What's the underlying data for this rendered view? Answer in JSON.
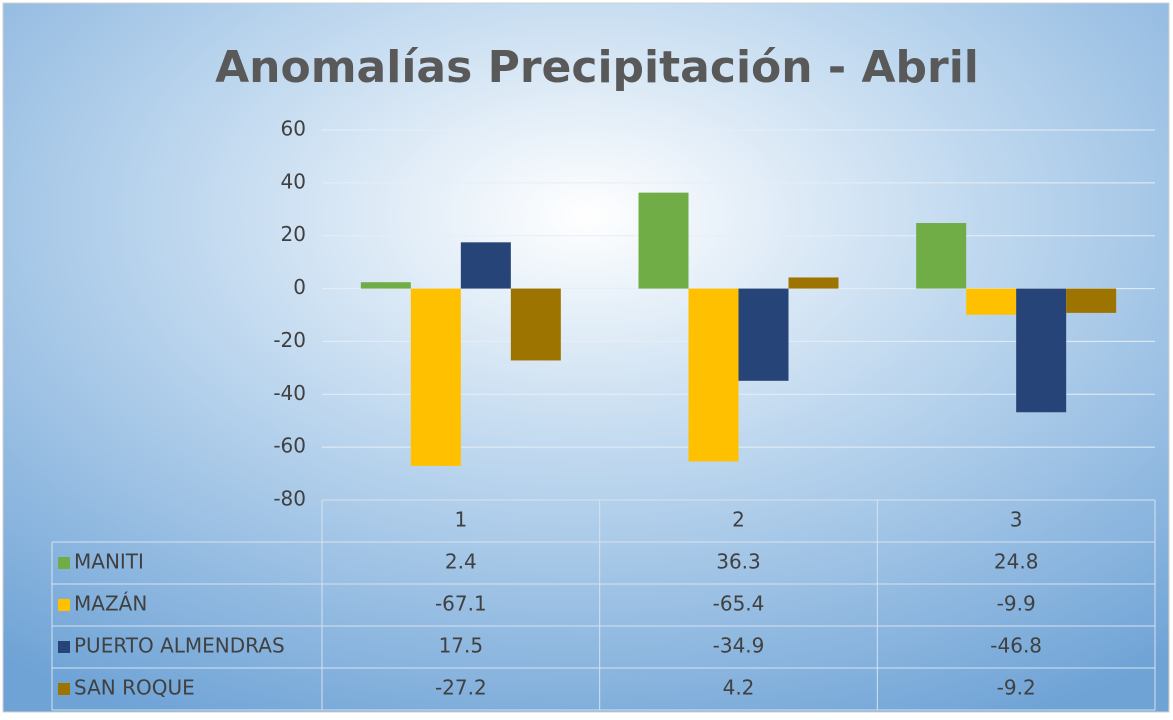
{
  "chart_data": {
    "type": "bar",
    "title": "Anomalías Precipitación -  Abril",
    "categories": [
      "1",
      "2",
      "3"
    ],
    "series": [
      {
        "name": "MANITI",
        "color": "#70ad47",
        "values": [
          2.4,
          36.3,
          24.8
        ]
      },
      {
        "name": "MAZÁN",
        "color": "#ffc000",
        "values": [
          -67.1,
          -65.4,
          -9.9
        ]
      },
      {
        "name": "PUERTO ALMENDRAS",
        "color": "#264478",
        "values": [
          17.5,
          -34.9,
          -46.8
        ]
      },
      {
        "name": "SAN ROQUE",
        "color": "#9e7400",
        "values": [
          -27.2,
          4.2,
          -9.2
        ]
      }
    ],
    "ylim": [
      -80,
      60
    ],
    "yticks": [
      60,
      40,
      20,
      0,
      -20,
      -40,
      -60,
      -80
    ],
    "grid": true,
    "data_table": true
  }
}
